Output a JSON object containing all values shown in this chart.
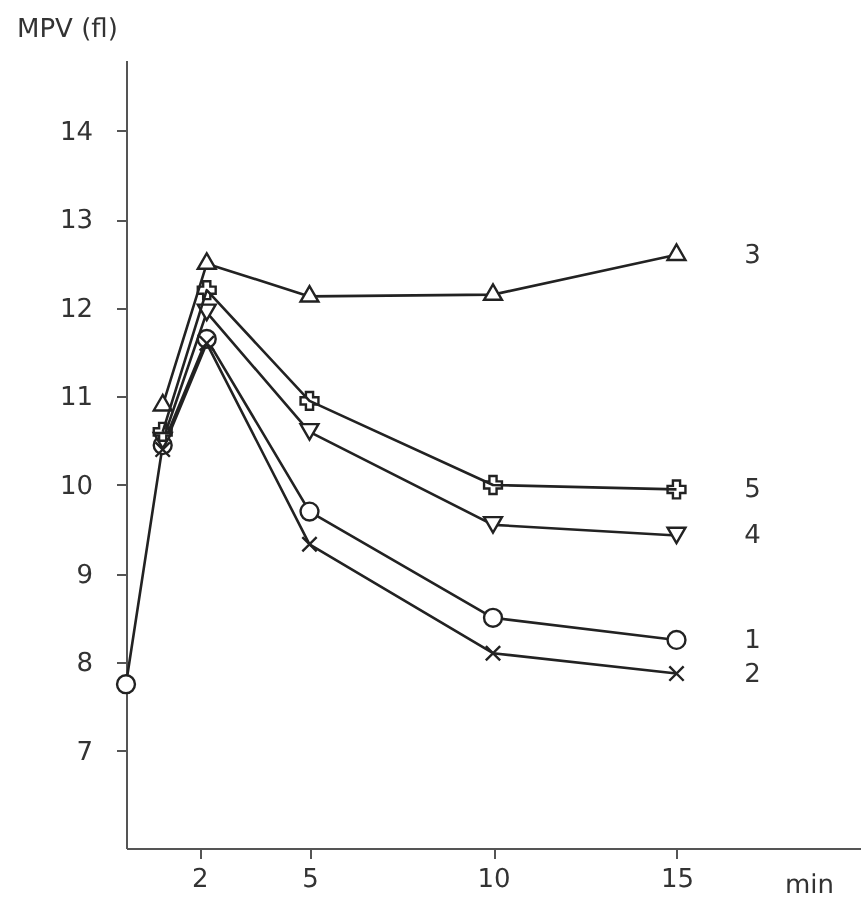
{
  "chart_data": {
    "type": "line",
    "xlabel": "min",
    "ylabel": "MPV (fl)",
    "x": [
      0,
      1,
      2.2,
      5,
      10,
      15
    ],
    "xlim": [
      0,
      20
    ],
    "ylim": [
      5.9,
      14.8
    ],
    "xticks": [
      2,
      5,
      10,
      15
    ],
    "yticks": [
      7,
      8,
      9,
      10,
      11,
      12,
      13,
      14
    ],
    "grid": false,
    "legend": false,
    "line_style": "solid",
    "series": [
      {
        "name": "1",
        "color": "#222222",
        "marker": "circle",
        "values": [
          7.75,
          10.45,
          11.65,
          9.7,
          8.5,
          8.25
        ]
      },
      {
        "name": "2",
        "color": "#222222",
        "marker": "x",
        "values": [
          null,
          10.4,
          11.6,
          9.33,
          8.1,
          7.87
        ]
      },
      {
        "name": "3",
        "color": "#222222",
        "marker": "triangle",
        "values": [
          null,
          10.9,
          12.5,
          12.13,
          12.15,
          12.6
        ]
      },
      {
        "name": "4",
        "color": "#222222",
        "marker": "triangle-down",
        "values": [
          null,
          10.5,
          11.95,
          10.6,
          9.55,
          9.43
        ]
      },
      {
        "name": "5",
        "color": "#222222",
        "marker": "cross",
        "values": [
          null,
          10.6,
          12.2,
          10.95,
          10.0,
          9.95
        ]
      }
    ]
  }
}
